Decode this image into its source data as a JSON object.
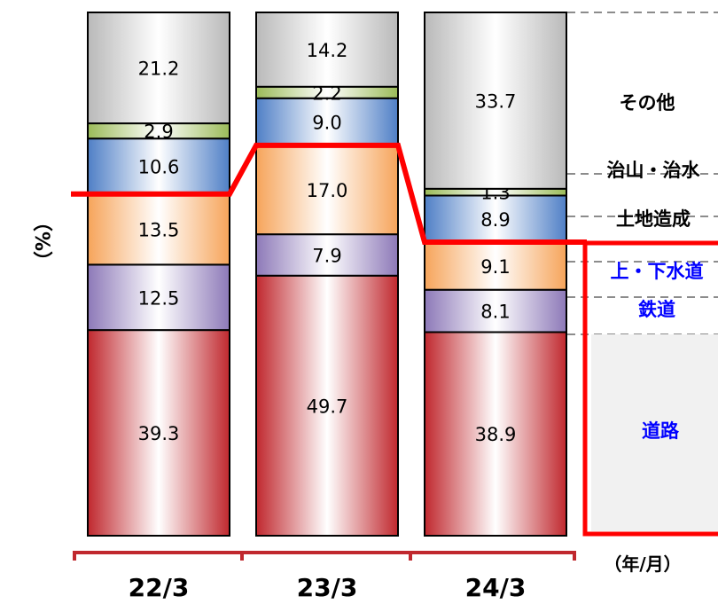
{
  "chart_data": {
    "type": "bar",
    "stacked": true,
    "normalized_percent": true,
    "ylabel": "（%）",
    "xlabel": "（年/月）",
    "categories": [
      "22/3",
      "23/3",
      "24/3"
    ],
    "series": [
      {
        "name": "道路",
        "values": [
          39.3,
          49.7,
          38.9
        ],
        "color": "#c0282e"
      },
      {
        "name": "鉄道",
        "values": [
          12.5,
          7.9,
          8.1
        ],
        "color": "#8d79b8"
      },
      {
        "name": "上・下水道",
        "values": [
          13.5,
          17.0,
          9.1
        ],
        "color": "#f6a45a"
      },
      {
        "name": "土地造成",
        "values": [
          10.6,
          9.0,
          8.9
        ],
        "color": "#4f7fc6"
      },
      {
        "name": "治山・治水",
        "values": [
          2.9,
          2.2,
          1.3
        ],
        "color": "#9bbb59"
      },
      {
        "name": "その他",
        "values": [
          21.2,
          14.2,
          33.7
        ],
        "color": "#b9b9b9"
      }
    ],
    "value_labels": [
      [
        "39.3",
        "12.5",
        "13.5",
        "10.6",
        "2.9",
        "21.2"
      ],
      [
        "49.7",
        "7.9",
        "17.0",
        "9.0",
        "2.2",
        "14.2"
      ],
      [
        "38.9",
        "8.1",
        "9.1",
        "8.9",
        "1.3",
        "33.7"
      ]
    ],
    "highlight_line": {
      "color": "#ff0000"
    },
    "highlight_box_color": "#ff0000",
    "legend_text_colors": {
      "その他": "#000000",
      "治山・治水": "#000000",
      "土地造成": "#000000",
      "上・下水道": "#0000ff",
      "鉄道": "#0000ff",
      "道路": "#0000ff"
    },
    "axis_line_color": "#c0282e"
  }
}
